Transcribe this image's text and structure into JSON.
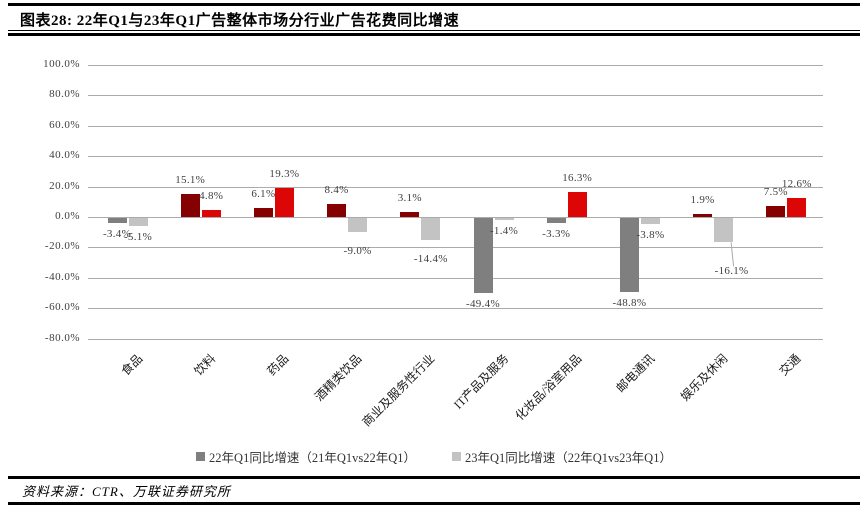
{
  "header": {
    "title": "图表28:  22年Q1与23年Q1广告整体市场分行业广告花费同比增速"
  },
  "source": {
    "label": "资料来源：",
    "text": "CTR、万联证券研究所"
  },
  "chart_data": {
    "type": "bar",
    "title": "22年Q1与23年Q1广告整体市场分行业广告花费同比增速",
    "categories": [
      "食品",
      "饮料",
      "药品",
      "酒精类饮品",
      "商业及服务性行业",
      "IT产品及服务",
      "化妆品/浴室用品",
      "邮电通讯",
      "娱乐及休闲",
      "交通"
    ],
    "series": [
      {
        "name": "22年Q1同比增速（21年Q1vs22年Q1）",
        "values": [
          -3.4,
          15.1,
          6.1,
          8.4,
          3.1,
          -49.4,
          -3.3,
          -48.8,
          1.9,
          7.5
        ],
        "color_positive": "#850000",
        "color_negative": "#7F7F7F",
        "legend_color": "#7F7F7F"
      },
      {
        "name": "23年Q1同比增速（22年Q1vs23年Q1）",
        "values": [
          -5.1,
          4.8,
          19.3,
          -9.0,
          -14.4,
          -1.4,
          16.3,
          -3.8,
          -16.1,
          12.6
        ],
        "color_positive": "#DD0606",
        "color_negative": "#C3C3C3",
        "legend_color": "#C3C3C3"
      }
    ],
    "y_axis": {
      "min": -80,
      "max": 100,
      "step": 20,
      "tick_suffix": "%"
    },
    "grid": true,
    "legend_position": "bottom",
    "label_overrides": [
      {
        "series": 1,
        "index": 3,
        "dy": 8
      },
      {
        "series": 1,
        "index": 4,
        "dy": 8
      },
      {
        "series": 1,
        "index": 8,
        "dy": 18,
        "dx": 8,
        "leader": true
      }
    ]
  }
}
